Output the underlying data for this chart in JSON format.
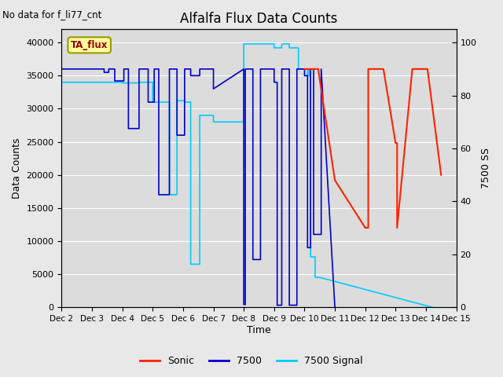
{
  "title": "Alfalfa Flux Data Counts",
  "xlabel": "Time",
  "ylabel_left": "Data Counts",
  "ylabel_right": "7500 SS",
  "no_data_text": "No data for f_li77_cnt",
  "ta_flux_label": "TA_flux",
  "ylim_left": [
    0,
    42000
  ],
  "ylim_right": [
    0,
    105
  ],
  "yticks_left": [
    0,
    5000,
    10000,
    15000,
    20000,
    25000,
    30000,
    35000,
    40000
  ],
  "yticks_right": [
    0,
    20,
    40,
    60,
    80,
    100
  ],
  "xtick_labels": [
    "Dec 2",
    "Dec 3",
    "Dec 4",
    "Dec 5",
    "Dec 6",
    "Dec 7",
    "Dec 8",
    "Dec 9",
    "Dec 10",
    "Dec 11",
    "Dec 12",
    "Dec 13",
    "Dec 14",
    "Dec 15"
  ],
  "bg_color": "#e8e8e8",
  "plot_bg_color": "#dcdcdc",
  "grid_color": "#ffffff",
  "sonic_color": "#ff2200",
  "s7500_color": "#0000cc",
  "signal_color": "#00ccff",
  "s7500_x": [
    2.0,
    3.4,
    3.4,
    3.55,
    3.55,
    3.75,
    3.75,
    4.05,
    4.05,
    4.2,
    4.2,
    4.55,
    4.55,
    4.85,
    4.85,
    5.05,
    5.05,
    5.2,
    5.2,
    5.55,
    5.55,
    5.8,
    5.8,
    6.05,
    6.05,
    6.25,
    6.25,
    6.55,
    6.55,
    7.0,
    7.0,
    8.0,
    8.0,
    8.05,
    8.05,
    8.3,
    8.3,
    8.55,
    8.55,
    9.0,
    9.0,
    9.1,
    9.1,
    9.25,
    9.25,
    9.5,
    9.5,
    9.75,
    9.75,
    10.0,
    10.0,
    10.1,
    10.1,
    10.2,
    10.2,
    10.3,
    10.3,
    10.55,
    10.55,
    11.0
  ],
  "s7500_y": [
    36000,
    36000,
    35500,
    35500,
    36000,
    36000,
    34200,
    34200,
    36000,
    36000,
    27000,
    27000,
    36000,
    36000,
    31000,
    31000,
    36000,
    36000,
    17000,
    17000,
    36000,
    36000,
    26000,
    26000,
    36000,
    36000,
    35000,
    35000,
    36000,
    36000,
    33000,
    36000,
    400,
    400,
    36000,
    36000,
    7200,
    7200,
    36000,
    36000,
    34000,
    34000,
    300,
    300,
    36000,
    36000,
    300,
    300,
    36000,
    36000,
    35000,
    35000,
    9000,
    9000,
    36000,
    36000,
    11000,
    11000,
    36000,
    0
  ],
  "signal_x": [
    2.0,
    3.4,
    3.4,
    3.55,
    3.55,
    4.0,
    4.0,
    4.55,
    4.55,
    5.0,
    5.0,
    5.55,
    5.55,
    5.8,
    5.8,
    6.05,
    6.05,
    6.25,
    6.25,
    6.55,
    6.55,
    7.0,
    7.0,
    8.0,
    8.0,
    9.0,
    9.0,
    9.25,
    9.25,
    9.5,
    9.5,
    9.8,
    9.8,
    10.0,
    10.0,
    10.1,
    10.1,
    10.15,
    10.15,
    10.2,
    10.2,
    10.35,
    10.35,
    10.5,
    14.2
  ],
  "signal_y": [
    34000,
    34000,
    34000,
    34000,
    34000,
    34000,
    33900,
    33900,
    34000,
    34000,
    31000,
    31000,
    17000,
    17000,
    31200,
    31200,
    31000,
    31000,
    6500,
    6500,
    29000,
    29000,
    28000,
    28000,
    39800,
    39800,
    39200,
    39200,
    39800,
    39800,
    39200,
    39200,
    36000,
    36000,
    36000,
    36000,
    35000,
    35000,
    36000,
    36000,
    7600,
    7600,
    4500,
    4500,
    0
  ],
  "sonic_x": [
    10.0,
    10.0,
    10.05,
    10.45,
    11.0,
    12.0,
    12.1,
    12.1,
    12.6,
    12.6,
    13.0,
    13.05,
    13.05,
    13.55,
    13.55,
    14.05,
    14.05,
    14.5
  ],
  "sonic_y": [
    36000,
    36000,
    36000,
    36000,
    19200,
    12000,
    12000,
    36000,
    36000,
    36000,
    24800,
    24800,
    12000,
    36000,
    36000,
    36000,
    36000,
    20000
  ],
  "legend_entries": [
    "Sonic",
    "7500",
    "7500 Signal"
  ],
  "legend_colors": [
    "#ff2200",
    "#0000cc",
    "#00ccff"
  ]
}
